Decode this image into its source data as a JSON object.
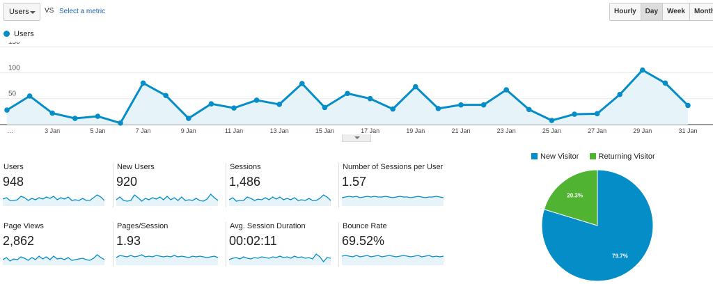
{
  "toolbar": {
    "metric_select_value": "Users",
    "vs_label": "VS",
    "select_metric_link": "Select a metric",
    "range_buttons": [
      "Hourly",
      "Day",
      "Week",
      "Month"
    ],
    "active_range": "Day"
  },
  "colors": {
    "accent": "#058dc7",
    "area_fill": "#e6f3f9",
    "returning": "#50b432",
    "grid": "#e8e8e8"
  },
  "chart_data": {
    "type": "line",
    "series": [
      {
        "name": "Users",
        "values": [
          28,
          55,
          22,
          12,
          16,
          3,
          80,
          56,
          12,
          40,
          32,
          47,
          39,
          79,
          33,
          60,
          50,
          30,
          73,
          31,
          38,
          38,
          67,
          29,
          8,
          20,
          21,
          58,
          105,
          80,
          37
        ]
      }
    ],
    "x": [
      "1 Jan",
      "2 Jan",
      "3 Jan",
      "4 Jan",
      "5 Jan",
      "6 Jan",
      "7 Jan",
      "8 Jan",
      "9 Jan",
      "10 Jan",
      "11 Jan",
      "12 Jan",
      "13 Jan",
      "14 Jan",
      "15 Jan",
      "16 Jan",
      "17 Jan",
      "18 Jan",
      "19 Jan",
      "20 Jan",
      "21 Jan",
      "22 Jan",
      "23 Jan",
      "24 Jan",
      "25 Jan",
      "26 Jan",
      "27 Jan",
      "28 Jan",
      "29 Jan",
      "30 Jan",
      "31 Jan"
    ],
    "x_tick_labels": [
      "…",
      "3 Jan",
      "5 Jan",
      "7 Jan",
      "9 Jan",
      "11 Jan",
      "13 Jan",
      "15 Jan",
      "17 Jan",
      "19 Jan",
      "21 Jan",
      "23 Jan",
      "25 Jan",
      "27 Jan",
      "29 Jan",
      "31 Jan"
    ],
    "y_ticks": [
      50,
      100,
      150
    ],
    "ylim": [
      0,
      150
    ],
    "grid": true,
    "legend": "top-left"
  },
  "scorecards": [
    {
      "label": "Users",
      "value": "948",
      "spark": [
        0.4,
        0.5,
        0.3,
        0.3,
        0.35,
        0.6,
        0.5,
        0.3,
        0.45,
        0.35,
        0.5,
        0.4,
        0.55,
        0.45,
        0.6,
        0.35,
        0.5,
        0.4,
        0.55,
        0.3,
        0.35,
        0.3,
        0.45,
        0.3,
        0.3,
        0.5,
        0.7,
        0.55,
        0.3
      ]
    },
    {
      "label": "New Users",
      "value": "920",
      "spark": [
        0.35,
        0.55,
        0.3,
        0.25,
        0.3,
        0.7,
        0.5,
        0.25,
        0.45,
        0.35,
        0.5,
        0.4,
        0.55,
        0.35,
        0.6,
        0.35,
        0.5,
        0.3,
        0.55,
        0.3,
        0.35,
        0.3,
        0.45,
        0.3,
        0.25,
        0.4,
        0.75,
        0.5,
        0.3
      ]
    },
    {
      "label": "Sessions",
      "value": "1,486",
      "spark": [
        0.35,
        0.5,
        0.25,
        0.3,
        0.3,
        0.55,
        0.45,
        0.3,
        0.4,
        0.35,
        0.5,
        0.35,
        0.55,
        0.4,
        0.55,
        0.35,
        0.45,
        0.35,
        0.5,
        0.3,
        0.35,
        0.3,
        0.45,
        0.3,
        0.3,
        0.45,
        0.7,
        0.55,
        0.3
      ]
    },
    {
      "label": "Number of Sessions per User",
      "value": "1.57",
      "spark": [
        0.5,
        0.55,
        0.6,
        0.55,
        0.6,
        0.5,
        0.55,
        0.6,
        0.55,
        0.6,
        0.55,
        0.55,
        0.6,
        0.55,
        0.5,
        0.55,
        0.6,
        0.55,
        0.55,
        0.5,
        0.55,
        0.6,
        0.55,
        0.5,
        0.55,
        0.55,
        0.6,
        0.55,
        0.5
      ]
    },
    {
      "label": "Page Views",
      "value": "2,862",
      "spark": [
        0.3,
        0.45,
        0.2,
        0.35,
        0.3,
        0.5,
        0.4,
        0.25,
        0.45,
        0.3,
        0.55,
        0.35,
        0.5,
        0.3,
        0.55,
        0.35,
        0.4,
        0.3,
        0.45,
        0.25,
        0.3,
        0.35,
        0.4,
        0.3,
        0.25,
        0.4,
        0.65,
        0.45,
        0.3
      ]
    },
    {
      "label": "Pages/Session",
      "value": "1.93",
      "spark": [
        0.45,
        0.6,
        0.55,
        0.5,
        0.6,
        0.5,
        0.55,
        0.65,
        0.5,
        0.55,
        0.5,
        0.6,
        0.55,
        0.5,
        0.55,
        0.5,
        0.6,
        0.5,
        0.55,
        0.5,
        0.45,
        0.55,
        0.5,
        0.55,
        0.5,
        0.45,
        0.5,
        0.55,
        0.45
      ]
    },
    {
      "label": "Avg. Session Duration",
      "value": "00:02:11",
      "spark": [
        0.3,
        0.4,
        0.45,
        0.35,
        0.5,
        0.4,
        0.35,
        0.45,
        0.4,
        0.5,
        0.45,
        0.4,
        0.5,
        0.45,
        0.55,
        0.45,
        0.5,
        0.4,
        0.55,
        0.45,
        0.5,
        0.4,
        0.45,
        0.35,
        0.7,
        0.5,
        0.15,
        0.45,
        0.4
      ]
    },
    {
      "label": "Bounce Rate",
      "value": "69.52%",
      "spark": [
        0.55,
        0.6,
        0.55,
        0.5,
        0.6,
        0.5,
        0.55,
        0.6,
        0.5,
        0.55,
        0.6,
        0.5,
        0.55,
        0.6,
        0.55,
        0.5,
        0.55,
        0.6,
        0.55,
        0.5,
        0.55,
        0.6,
        0.5,
        0.55,
        0.6,
        0.5,
        0.55,
        0.5,
        0.55
      ]
    }
  ],
  "pie": {
    "legend": [
      "New Visitor",
      "Returning Visitor"
    ],
    "slices": [
      {
        "name": "New Visitor",
        "value": 79.7,
        "label": "79.7%",
        "color": "#058dc7"
      },
      {
        "name": "Returning Visitor",
        "value": 20.3,
        "label": "20.3%",
        "color": "#50b432"
      }
    ]
  }
}
